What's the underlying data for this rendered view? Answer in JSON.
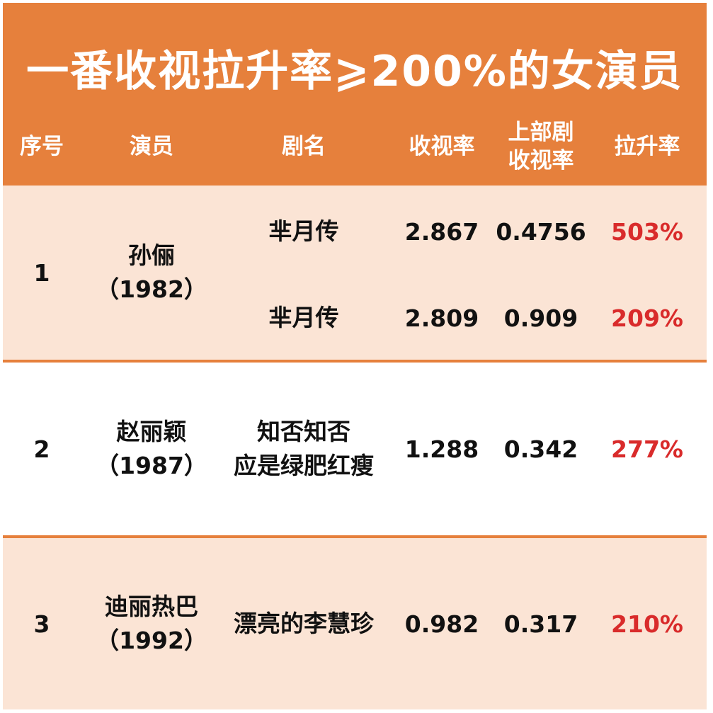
{
  "title": "一番收视拉升率⩾200%的女演员",
  "headers": {
    "index": "序号",
    "actress": "演员",
    "drama": "剧名",
    "rating": "收视率",
    "prev_rating_line1": "上部剧",
    "prev_rating_line2": "收视率",
    "growth": "拉升率"
  },
  "rows": [
    {
      "index": "1",
      "name": "孙俪",
      "year": "（1982）",
      "entries": [
        {
          "drama": "芈月传",
          "rating": "2.867",
          "prev": "0.4756",
          "growth": "503%"
        },
        {
          "drama": "芈月传",
          "rating": "2.809",
          "prev": "0.909",
          "growth": "209%"
        }
      ]
    },
    {
      "index": "2",
      "name": "赵丽颖",
      "year": "（1987）",
      "drama_line1": "知否知否",
      "drama_line2": "应是绿肥红瘦",
      "rating": "1.288",
      "prev": "0.342",
      "growth": "277%"
    },
    {
      "index": "3",
      "name": "迪丽热巴",
      "year": "（1992）",
      "drama": "漂亮的李慧珍",
      "rating": "0.982",
      "prev": "0.317",
      "growth": "210%"
    }
  ],
  "colors": {
    "orange": "#e6803c",
    "peach": "#fbe4d5",
    "growth_red": "#d92b2b"
  }
}
